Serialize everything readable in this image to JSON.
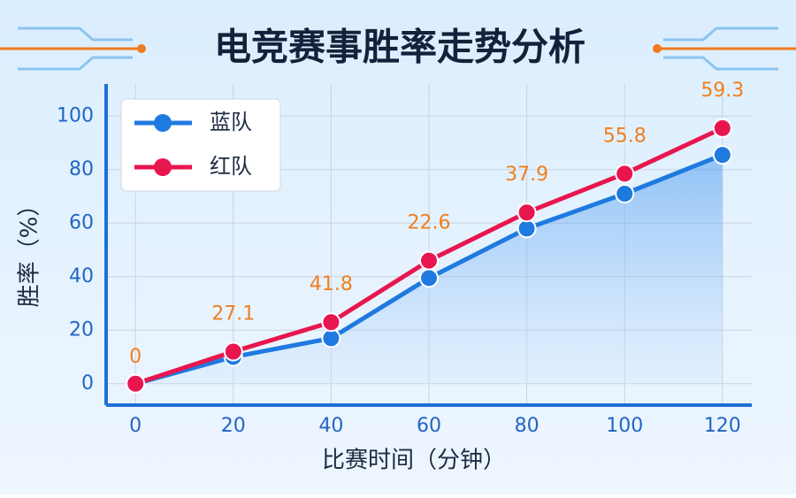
{
  "chart_data": {
    "type": "line",
    "title": "电竞赛事胜率走势分析",
    "x_label": "比赛时间（分钟）",
    "y_label": "胜率（%）",
    "x": [
      0,
      20,
      40,
      60,
      80,
      100,
      120
    ],
    "series": [
      {
        "name": "蓝队",
        "color": "#1f7ae0",
        "values": [
          0,
          10,
          17,
          39.5,
          58,
          71,
          85.5
        ],
        "fill_area": true
      },
      {
        "name": "红队",
        "color": "#e8164f",
        "values": [
          0,
          12,
          23,
          46,
          64,
          78.5,
          95.5
        ]
      }
    ],
    "annotations": [
      "0",
      "27.1",
      "41.8",
      "22.6",
      "37.9",
      "55.8",
      "59.3"
    ],
    "annotation_color": "#f07f1f",
    "xlim": [
      -6,
      126
    ],
    "ylim": [
      -8,
      112
    ],
    "xticks": [
      0,
      20,
      40,
      60,
      80,
      100,
      120
    ],
    "yticks": [
      0,
      20,
      40,
      60,
      80,
      100
    ],
    "grid": true,
    "legend_loc": "upper left"
  }
}
